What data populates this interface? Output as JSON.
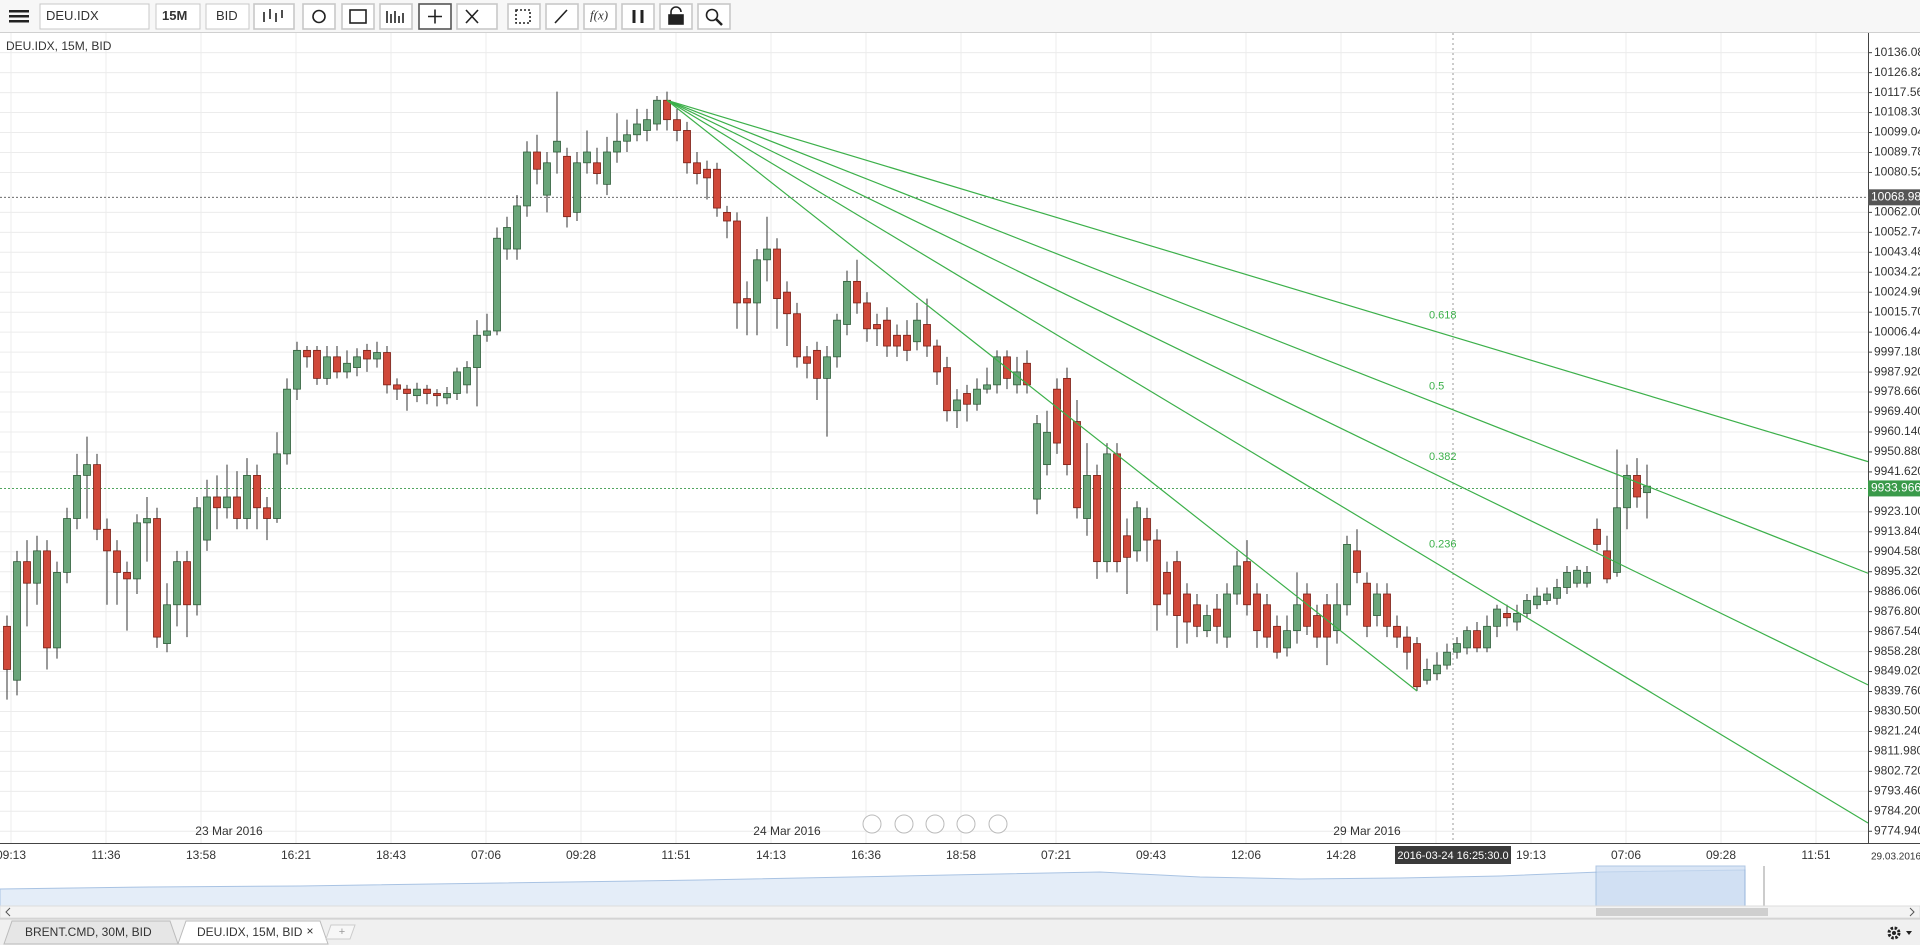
{
  "toolbar": {
    "symbol": "DEU.IDX",
    "period": "15M",
    "side": "BID",
    "fx": "f(x)"
  },
  "chart_label": "DEU.IDX, 15M, BID",
  "chart_data": {
    "type": "candlestick",
    "up_color": "#6aa57a",
    "down_color": "#d0493a",
    "grid": true,
    "ylim": [
      9769.5,
      10145.2
    ],
    "yticks": [
      {
        "value": 10136.08,
        "label": "10136.080"
      },
      {
        "value": 10126.82,
        "label": "10126.820"
      },
      {
        "value": 10117.56,
        "label": "10117.560"
      },
      {
        "value": 10108.3,
        "label": "10108.300"
      },
      {
        "value": 10099.04,
        "label": "10099.040"
      },
      {
        "value": 10089.78,
        "label": "10089.780"
      },
      {
        "value": 10080.52,
        "label": "10080.520"
      },
      {
        "value": 10062,
        "label": "10062.000"
      },
      {
        "value": 10052.74,
        "label": "10052.740"
      },
      {
        "value": 10043.48,
        "label": "10043.480"
      },
      {
        "value": 10034.22,
        "label": "10034.220"
      },
      {
        "value": 10024.96,
        "label": "10024.960"
      },
      {
        "value": 10015.7,
        "label": "10015.700"
      },
      {
        "value": 10006.44,
        "label": "10006.440"
      },
      {
        "value": 9997.18,
        "label": "9997.180"
      },
      {
        "value": 9987.92,
        "label": "9987.920"
      },
      {
        "value": 9978.66,
        "label": "9978.660"
      },
      {
        "value": 9969.4,
        "label": "9969.400"
      },
      {
        "value": 9960.14,
        "label": "9960.140"
      },
      {
        "value": 9950.88,
        "label": "9950.880"
      },
      {
        "value": 9941.62,
        "label": "9941.620"
      },
      {
        "value": 9923.1,
        "label": "9923.100"
      },
      {
        "value": 9913.84,
        "label": "9913.840"
      },
      {
        "value": 9904.58,
        "label": "9904.580"
      },
      {
        "value": 9895.32,
        "label": "9895.320"
      },
      {
        "value": 9886.06,
        "label": "9886.060"
      },
      {
        "value": 9876.8,
        "label": "9876.800"
      },
      {
        "value": 9867.54,
        "label": "9867.540"
      },
      {
        "value": 9858.28,
        "label": "9858.280"
      },
      {
        "value": 9849.02,
        "label": "9849.020"
      },
      {
        "value": 9839.76,
        "label": "9839.760"
      },
      {
        "value": 9830.5,
        "label": "9830.500"
      },
      {
        "value": 9821.24,
        "label": "9821.240"
      },
      {
        "value": 9811.98,
        "label": "9811.980"
      },
      {
        "value": 9802.72,
        "label": "9802.720"
      },
      {
        "value": 9793.46,
        "label": "9793.460"
      },
      {
        "value": 9784.2,
        "label": "9784.200"
      },
      {
        "value": 9774.94,
        "label": "9774.940"
      }
    ],
    "x_labels": [
      "09:13",
      "11:36",
      "13:58",
      "16:21",
      "18:43",
      "07:06",
      "09:28",
      "11:51",
      "14:13",
      "16:36",
      "18:58",
      "07:21",
      "09:43",
      "12:06",
      "14:28",
      null,
      "19:13",
      "07:06",
      "09:28",
      "11:51"
    ],
    "date_labels": [
      "23 Mar 2016",
      "24 Mar 2016",
      "29 Mar 2016"
    ],
    "axis_corner_date": "29.03.2016",
    "cursor_label": "2016-03-24 16:25:30.0",
    "price_lines": [
      {
        "value": 10068.98,
        "color": "#555555"
      },
      {
        "value": 9933.966,
        "color": "#3a9a4a"
      }
    ],
    "fib_fan": {
      "start": [
        66,
        10114
      ],
      "end": [
        141,
        9840
      ],
      "levels": [
        0.618,
        0.5,
        0.382,
        0.236
      ],
      "color": "#3cb04a"
    },
    "ohlc": [
      [
        9870,
        9875,
        9836,
        9850
      ],
      [
        9845,
        9905,
        9838,
        9900
      ],
      [
        9900,
        9910,
        9870,
        9890
      ],
      [
        9890,
        9912,
        9880,
        9905
      ],
      [
        9905,
        9910,
        9850,
        9860
      ],
      [
        9860,
        9900,
        9855,
        9895
      ],
      [
        9895,
        9925,
        9890,
        9920
      ],
      [
        9920,
        9950,
        9915,
        9940
      ],
      [
        9940,
        9958,
        9920,
        9945
      ],
      [
        9945,
        9950,
        9910,
        9915
      ],
      [
        9915,
        9920,
        9880,
        9905
      ],
      [
        9905,
        9910,
        9880,
        9895
      ],
      [
        9895,
        9900,
        9868,
        9892
      ],
      [
        9892,
        9922,
        9885,
        9918
      ],
      [
        9918,
        9930,
        9900,
        9920
      ],
      [
        9920,
        9925,
        9860,
        9865
      ],
      [
        9862,
        9890,
        9858,
        9880
      ],
      [
        9880,
        9905,
        9870,
        9900
      ],
      [
        9900,
        9905,
        9865,
        9880
      ],
      [
        9880,
        9930,
        9875,
        9925
      ],
      [
        9910,
        9938,
        9905,
        9930
      ],
      [
        9930,
        9940,
        9915,
        9925
      ],
      [
        9925,
        9945,
        9920,
        9930
      ],
      [
        9930,
        9942,
        9915,
        9920
      ],
      [
        9920,
        9948,
        9915,
        9940
      ],
      [
        9940,
        9945,
        9915,
        9925
      ],
      [
        9925,
        9930,
        9910,
        9920
      ],
      [
        9920,
        9960,
        9918,
        9950
      ],
      [
        9950,
        9985,
        9945,
        9980
      ],
      [
        9980,
        10002,
        9975,
        9998
      ],
      [
        9998,
        10000,
        9990,
        9995
      ],
      [
        9998,
        10000,
        9982,
        9985
      ],
      [
        9985,
        10000,
        9982,
        9995
      ],
      [
        9995,
        10000,
        9985,
        9988
      ],
      [
        9988,
        9998,
        9985,
        9992
      ],
      [
        9990,
        9999,
        9986,
        9995
      ],
      [
        9998,
        10001,
        9988,
        9994
      ],
      [
        9994,
        10002,
        9990,
        9997
      ],
      [
        9997,
        10000,
        9978,
        9982
      ],
      [
        9982,
        9985,
        9975,
        9980
      ],
      [
        9980,
        9982,
        9970,
        9978
      ],
      [
        9977,
        9983,
        9974,
        9980
      ],
      [
        9980,
        9982,
        9973,
        9978
      ],
      [
        9978,
        9980,
        9972,
        9977
      ],
      [
        9976,
        9981,
        9973,
        9978
      ],
      [
        9978,
        9990,
        9975,
        9988
      ],
      [
        9982,
        9993,
        9978,
        9990
      ],
      [
        9990,
        10012,
        9972,
        10005
      ],
      [
        10005,
        10015,
        10002,
        10007
      ],
      [
        10007,
        10055,
        10005,
        10050
      ],
      [
        10045,
        10060,
        10040,
        10055
      ],
      [
        10045,
        10070,
        10040,
        10065
      ],
      [
        10065,
        10095,
        10060,
        10090
      ],
      [
        10090,
        10098,
        10075,
        10082
      ],
      [
        10070,
        10090,
        10062,
        10085
      ],
      [
        10090,
        10118,
        10080,
        10095
      ],
      [
        10088,
        10092,
        10055,
        10060
      ],
      [
        10062,
        10090,
        10058,
        10085
      ],
      [
        10085,
        10100,
        10080,
        10090
      ],
      [
        10085,
        10092,
        10075,
        10080
      ],
      [
        10075,
        10097,
        10070,
        10090
      ],
      [
        10090,
        10108,
        10085,
        10095
      ],
      [
        10095,
        10105,
        10090,
        10098
      ],
      [
        10098,
        10110,
        10095,
        10103
      ],
      [
        10100,
        10110,
        10095,
        10105
      ],
      [
        10103,
        10116,
        10100,
        10114
      ],
      [
        10114,
        10118,
        10100,
        10105
      ],
      [
        10105,
        10110,
        10095,
        10100
      ],
      [
        10100,
        10104,
        10080,
        10085
      ],
      [
        10085,
        10090,
        10075,
        10080
      ],
      [
        10082,
        10086,
        10068,
        10078
      ],
      [
        10082,
        10085,
        10060,
        10064
      ],
      [
        10062,
        10065,
        10050,
        10058
      ],
      [
        10058,
        10062,
        10008,
        10020
      ],
      [
        10022,
        10030,
        10005,
        10020
      ],
      [
        10020,
        10045,
        10005,
        10040
      ],
      [
        10040,
        10060,
        10030,
        10045
      ],
      [
        10045,
        10050,
        10008,
        10022
      ],
      [
        10025,
        10030,
        10000,
        10015
      ],
      [
        10015,
        10020,
        9990,
        9995
      ],
      [
        9995,
        10000,
        9985,
        9992
      ],
      [
        9998,
        10002,
        9975,
        9985
      ],
      [
        9985,
        10000,
        9958,
        9995
      ],
      [
        9995,
        10015,
        9990,
        10012
      ],
      [
        10010,
        10035,
        10005,
        10030
      ],
      [
        10030,
        10040,
        10015,
        10020
      ],
      [
        10020,
        10025,
        10002,
        10008
      ],
      [
        10010,
        10015,
        10000,
        10008
      ],
      [
        10012,
        10018,
        9995,
        10000
      ],
      [
        10005,
        10010,
        9995,
        10000
      ],
      [
        10005,
        10012,
        9993,
        9998
      ],
      [
        10002,
        10020,
        9998,
        10012
      ],
      [
        10010,
        10022,
        9995,
        10000
      ],
      [
        10000,
        10003,
        9982,
        9988
      ],
      [
        9990,
        9995,
        9965,
        9970
      ],
      [
        9970,
        9980,
        9962,
        9975
      ],
      [
        9978,
        9982,
        9965,
        9973
      ],
      [
        9973,
        9985,
        9970,
        9980
      ],
      [
        9980,
        9990,
        9978,
        9982
      ],
      [
        9982,
        9998,
        9978,
        9995
      ],
      [
        9995,
        9998,
        9980,
        9985
      ],
      [
        9982,
        9995,
        9978,
        9988
      ],
      [
        9992,
        9998,
        9978,
        9982
      ],
      [
        9929,
        9968,
        9922,
        9964
      ],
      [
        9945,
        9970,
        9940,
        9960
      ],
      [
        9980,
        9985,
        9950,
        9955
      ],
      [
        9985,
        9990,
        9940,
        9945
      ],
      [
        9965,
        9975,
        9920,
        9925
      ],
      [
        9920,
        9955,
        9912,
        9940
      ],
      [
        9940,
        9945,
        9892,
        9900
      ],
      [
        9900,
        9955,
        9895,
        9950
      ],
      [
        9950,
        9955,
        9895,
        9900
      ],
      [
        9912,
        9920,
        9885,
        9902
      ],
      [
        9905,
        9928,
        9900,
        9925
      ],
      [
        9920,
        9925,
        9900,
        9910
      ],
      [
        9910,
        9915,
        9868,
        9880
      ],
      [
        9895,
        9900,
        9875,
        9885
      ],
      [
        9900,
        9905,
        9860,
        9875
      ],
      [
        9885,
        9890,
        9862,
        9872
      ],
      [
        9880,
        9885,
        9865,
        9870
      ],
      [
        9868,
        9880,
        9865,
        9875
      ],
      [
        9878,
        9885,
        9862,
        9870
      ],
      [
        9865,
        9890,
        9860,
        9885
      ],
      [
        9885,
        9905,
        9880,
        9898
      ],
      [
        9900,
        9910,
        9875,
        9880
      ],
      [
        9885,
        9890,
        9860,
        9868
      ],
      [
        9880,
        9885,
        9860,
        9865
      ],
      [
        9870,
        9875,
        9855,
        9858
      ],
      [
        9860,
        9875,
        9856,
        9868
      ],
      [
        9868,
        9895,
        9862,
        9880
      ],
      [
        9885,
        9890,
        9866,
        9870
      ],
      [
        9875,
        9880,
        9860,
        9865
      ],
      [
        9880,
        9885,
        9852,
        9865
      ],
      [
        9868,
        9890,
        9862,
        9880
      ],
      [
        9880,
        9912,
        9875,
        9908
      ],
      [
        9905,
        9915,
        9890,
        9895
      ],
      [
        9890,
        9895,
        9865,
        9870
      ],
      [
        9875,
        9890,
        9870,
        9885
      ],
      [
        9885,
        9890,
        9865,
        9870
      ],
      [
        9870,
        9875,
        9860,
        9865
      ],
      [
        9865,
        9870,
        9850,
        9858
      ],
      [
        9862,
        9865,
        9840,
        9842
      ],
      [
        9845,
        9855,
        9843,
        9850
      ],
      [
        9848,
        9858,
        9845,
        9852
      ],
      [
        9852,
        9862,
        9850,
        9858
      ],
      [
        9858,
        9865,
        9855,
        9862
      ],
      [
        9860,
        9870,
        9857,
        9868
      ],
      [
        9868,
        9872,
        9858,
        9860
      ],
      [
        9860,
        9875,
        9858,
        9870
      ],
      [
        9870,
        9880,
        9865,
        9878
      ],
      [
        9876,
        9880,
        9870,
        9874
      ],
      [
        9872,
        9880,
        9868,
        9876
      ],
      [
        9876,
        9885,
        9874,
        9882
      ],
      [
        9880,
        9888,
        9878,
        9884
      ],
      [
        9882,
        9888,
        9880,
        9885
      ],
      [
        9883,
        9892,
        9880,
        9888
      ],
      [
        9888,
        9898,
        9885,
        9895
      ],
      [
        9890,
        9898,
        9888,
        9896
      ],
      [
        9890,
        9898,
        9888,
        9895
      ],
      [
        9915,
        9920,
        9905,
        9908
      ],
      [
        9905,
        9912,
        9890,
        9892
      ],
      [
        9895,
        9952,
        9893,
        9925
      ],
      [
        9925,
        9945,
        9915,
        9940
      ],
      [
        9940,
        9948,
        9925,
        9930
      ],
      [
        9932,
        9945,
        9920,
        9935
      ]
    ]
  },
  "tabs": [
    {
      "label": "BRENT.CMD, 30M, BID"
    },
    {
      "label": "DEU.IDX, 15M, BID",
      "close": "×"
    }
  ],
  "add_tab": "+"
}
